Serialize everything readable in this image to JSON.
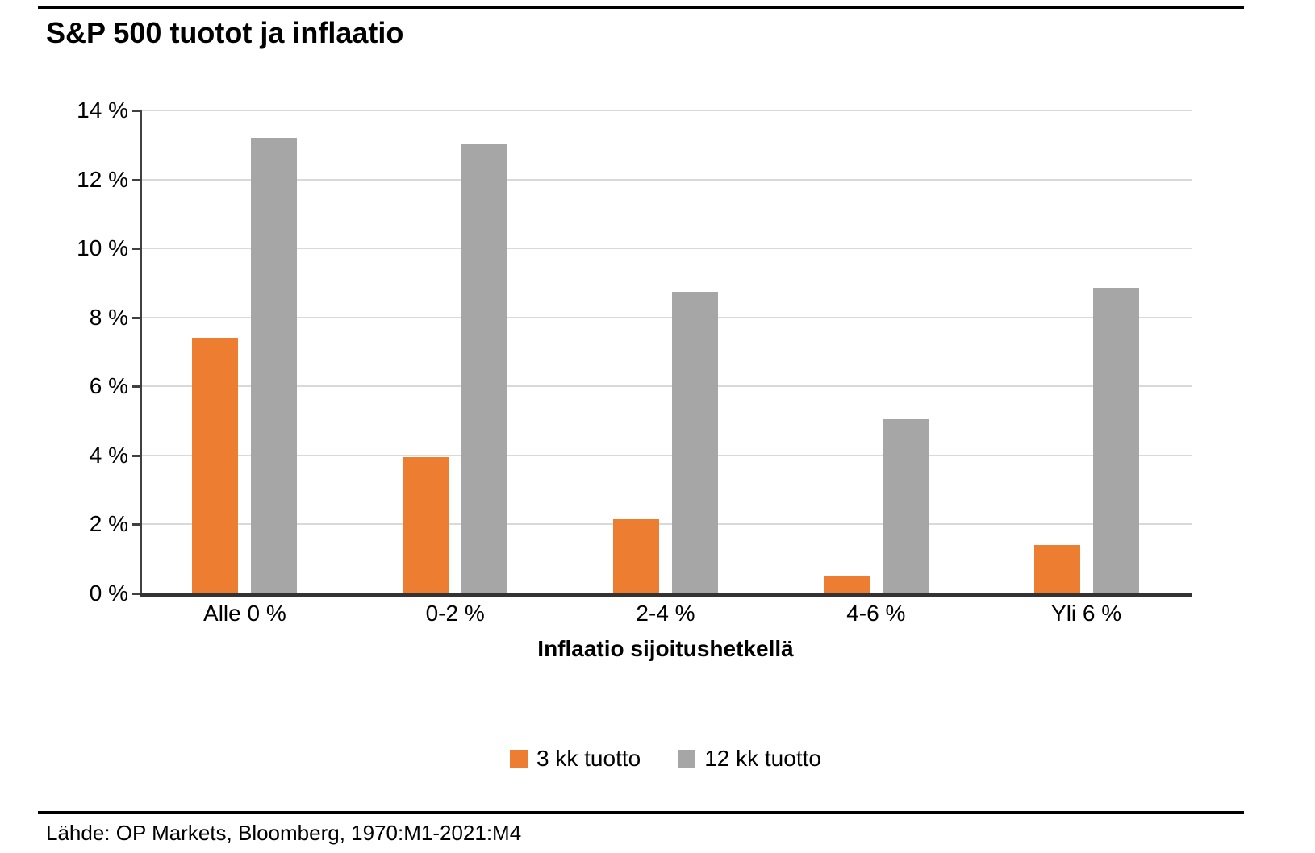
{
  "chart_data": {
    "type": "bar",
    "title": "S&P 500 tuotot ja inflaatio",
    "categories": [
      "Alle 0 %",
      "0-2 %",
      "2-4 %",
      "4-6 %",
      "Yli 6 %"
    ],
    "series": [
      {
        "name": "3 kk tuotto",
        "color": "#ED7D31",
        "values": [
          7.4,
          3.95,
          2.15,
          0.5,
          1.4
        ]
      },
      {
        "name": "12 kk tuotto",
        "color": "#A6A6A6",
        "values": [
          13.2,
          13.05,
          8.75,
          5.05,
          8.85
        ]
      }
    ],
    "xlabel": "Inflaatio sijoitushetkellä",
    "ylabel": "",
    "ylim": [
      0,
      14
    ],
    "ytick_step": 2,
    "yticks": [
      "0 %",
      "2 %",
      "4 %",
      "6 %",
      "8 %",
      "10 %",
      "12 %",
      "14 %"
    ],
    "grid": true,
    "legend_position": "bottom"
  },
  "source": {
    "text": "Lähde: OP Markets, Bloomberg, 1970:M1-2021:M4"
  },
  "colors": {
    "axis": "#404040",
    "gridline": "#D9D9D9",
    "rule": "#000000",
    "series_orange": "#ED7D31",
    "series_gray": "#A6A6A6"
  }
}
